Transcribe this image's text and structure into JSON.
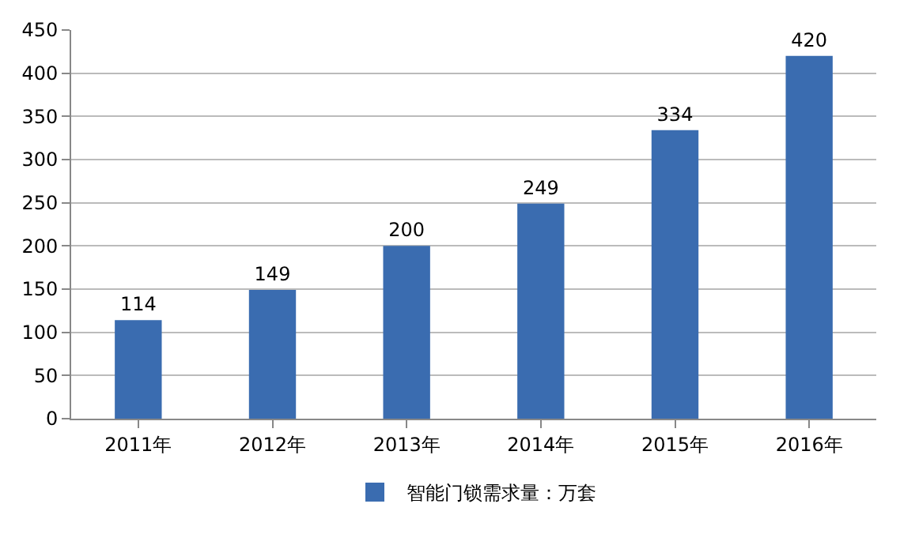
{
  "chart_data": {
    "type": "bar",
    "categories": [
      "2011年",
      "2012年",
      "2013年",
      "2014年",
      "2015年",
      "2016年"
    ],
    "series": [
      {
        "name": "智能门锁需求量：万套",
        "color": "#3a6cb0",
        "values": [
          114,
          149,
          200,
          249,
          334,
          420
        ]
      }
    ],
    "ylim": [
      0,
      450
    ],
    "yticks": [
      0,
      50,
      100,
      150,
      200,
      250,
      300,
      350,
      400,
      450
    ],
    "grid": "y",
    "legend": "bottom",
    "data_labels": true
  }
}
